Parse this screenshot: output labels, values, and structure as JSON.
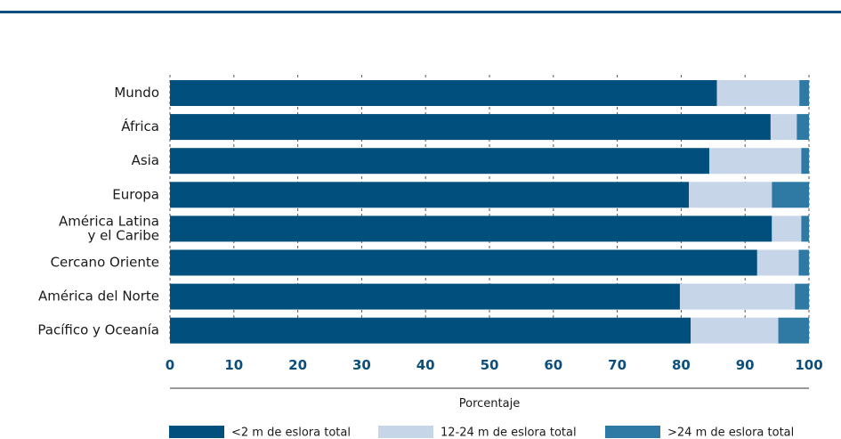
{
  "chart_data": {
    "type": "bar",
    "orientation": "horizontal",
    "stacked": true,
    "categories": [
      [
        "Mundo"
      ],
      [
        "África"
      ],
      [
        "Asia"
      ],
      [
        "Europa"
      ],
      [
        "América Latina",
        "y el Caribe"
      ],
      [
        "Cercano Oriente"
      ],
      [
        "América del Norte"
      ],
      [
        "Pacífico y Oceanía"
      ]
    ],
    "series": [
      {
        "name": "<2 m de eslora total",
        "color": "#004f7c",
        "values": [
          85.6,
          94.0,
          84.4,
          81.2,
          94.2,
          91.9,
          79.8,
          81.5
        ]
      },
      {
        "name": "12-24 m de eslora total",
        "color": "#c6d6e8",
        "values": [
          12.9,
          4.1,
          14.4,
          13.0,
          4.6,
          6.5,
          18.0,
          13.7
        ]
      },
      {
        "name": ">24 m de eslora total",
        "color": "#2e7aa4",
        "values": [
          1.5,
          1.9,
          1.2,
          5.8,
          1.2,
          1.6,
          2.2,
          4.8
        ]
      }
    ],
    "xlim": [
      0,
      100
    ],
    "xticks": [
      0,
      10,
      20,
      30,
      40,
      50,
      60,
      70,
      80,
      90,
      100
    ],
    "xlabel": "Porcentaje",
    "grid": "vertical-dashed",
    "legend_position": "bottom"
  }
}
